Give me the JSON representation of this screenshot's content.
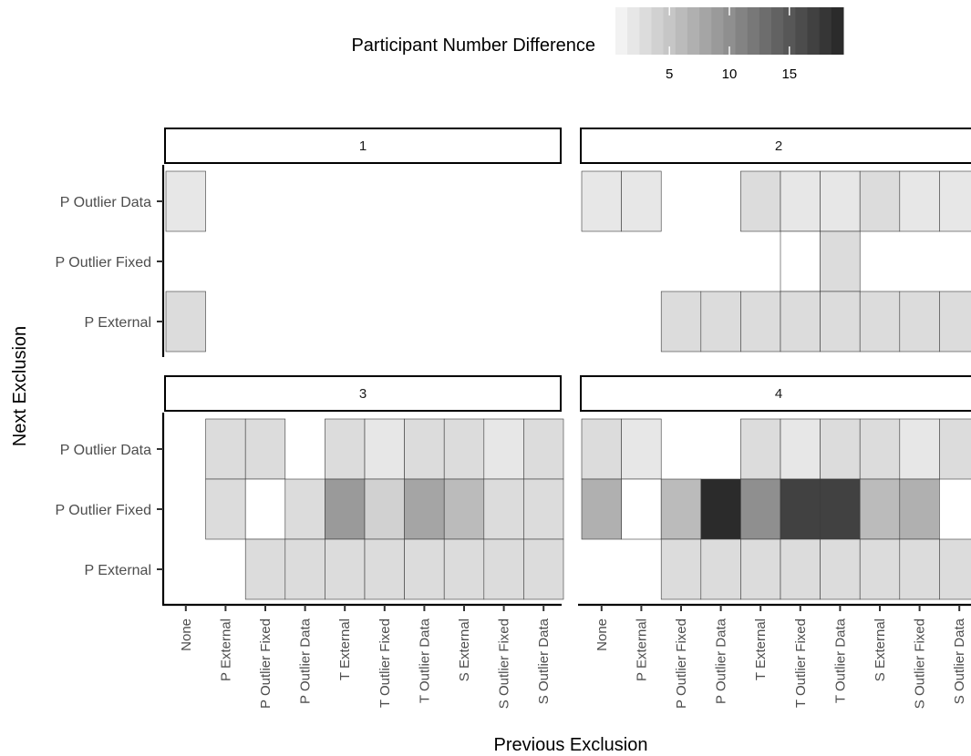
{
  "chart_data": {
    "type": "heatmap",
    "legend": {
      "title": "Participant Number Difference",
      "ticks": [
        5,
        10,
        15
      ],
      "range": [
        1,
        19
      ],
      "position": "top",
      "color_low": "#f2f2f2",
      "color_high": "#2b2b2b"
    },
    "xlabel": "Previous Exclusion",
    "ylabel": "Next Exclusion",
    "x_categories": [
      "None",
      "P External",
      "P Outlier Fixed",
      "P Outlier Data",
      "T External",
      "T Outlier Fixed",
      "T Outlier Data",
      "S External",
      "S Outlier Fixed",
      "S Outlier Data"
    ],
    "y_categories": [
      "P Outlier Data",
      "P Outlier Fixed",
      "P External"
    ],
    "panels": [
      {
        "strip": "1",
        "cells": [
          {
            "x": "None",
            "y": "P Outlier Data",
            "value": 2
          },
          {
            "x": "None",
            "y": "P External",
            "value": 3
          }
        ]
      },
      {
        "strip": "2",
        "cells": [
          {
            "x": "None",
            "y": "P Outlier Data",
            "value": 2
          },
          {
            "x": "P External",
            "y": "P Outlier Data",
            "value": 2
          },
          {
            "x": "T External",
            "y": "P Outlier Data",
            "value": 3
          },
          {
            "x": "T Outlier Fixed",
            "y": "P Outlier Data",
            "value": 2
          },
          {
            "x": "T Outlier Data",
            "y": "P Outlier Data",
            "value": 2
          },
          {
            "x": "S External",
            "y": "P Outlier Data",
            "value": 3
          },
          {
            "x": "S Outlier Fixed",
            "y": "P Outlier Data",
            "value": 2
          },
          {
            "x": "S Outlier Data",
            "y": "P Outlier Data",
            "value": 2
          },
          {
            "x": "T Outlier Fixed",
            "y": "P Outlier Fixed",
            "value": 0
          },
          {
            "x": "T Outlier Data",
            "y": "P Outlier Fixed",
            "value": 3
          },
          {
            "x": "P Outlier Fixed",
            "y": "P External",
            "value": 3
          },
          {
            "x": "P Outlier Data",
            "y": "P External",
            "value": 3
          },
          {
            "x": "T External",
            "y": "P External",
            "value": 3
          },
          {
            "x": "T Outlier Fixed",
            "y": "P External",
            "value": 3
          },
          {
            "x": "T Outlier Data",
            "y": "P External",
            "value": 3
          },
          {
            "x": "S External",
            "y": "P External",
            "value": 3
          },
          {
            "x": "S Outlier Fixed",
            "y": "P External",
            "value": 3
          },
          {
            "x": "S Outlier Data",
            "y": "P External",
            "value": 3
          }
        ]
      },
      {
        "strip": "3",
        "cells": [
          {
            "x": "P External",
            "y": "P Outlier Data",
            "value": 3
          },
          {
            "x": "P Outlier Fixed",
            "y": "P Outlier Data",
            "value": 3
          },
          {
            "x": "T External",
            "y": "P Outlier Data",
            "value": 3
          },
          {
            "x": "T Outlier Fixed",
            "y": "P Outlier Data",
            "value": 2
          },
          {
            "x": "T Outlier Data",
            "y": "P Outlier Data",
            "value": 3
          },
          {
            "x": "S External",
            "y": "P Outlier Data",
            "value": 3
          },
          {
            "x": "S Outlier Fixed",
            "y": "P Outlier Data",
            "value": 2
          },
          {
            "x": "S Outlier Data",
            "y": "P Outlier Data",
            "value": 3
          },
          {
            "x": "P External",
            "y": "P Outlier Fixed",
            "value": 3
          },
          {
            "x": "P Outlier Fixed",
            "y": "P Outlier Fixed",
            "value": 0
          },
          {
            "x": "P Outlier Data",
            "y": "P Outlier Fixed",
            "value": 3
          },
          {
            "x": "T External",
            "y": "P Outlier Fixed",
            "value": 9
          },
          {
            "x": "T Outlier Fixed",
            "y": "P Outlier Fixed",
            "value": 4
          },
          {
            "x": "T Outlier Data",
            "y": "P Outlier Fixed",
            "value": 8
          },
          {
            "x": "S External",
            "y": "P Outlier Fixed",
            "value": 6
          },
          {
            "x": "S Outlier Fixed",
            "y": "P Outlier Fixed",
            "value": 3
          },
          {
            "x": "S Outlier Data",
            "y": "P Outlier Fixed",
            "value": 3
          },
          {
            "x": "P Outlier Fixed",
            "y": "P External",
            "value": 3
          },
          {
            "x": "P Outlier Data",
            "y": "P External",
            "value": 3
          },
          {
            "x": "T External",
            "y": "P External",
            "value": 3
          },
          {
            "x": "T Outlier Fixed",
            "y": "P External",
            "value": 3
          },
          {
            "x": "T Outlier Data",
            "y": "P External",
            "value": 3
          },
          {
            "x": "S External",
            "y": "P External",
            "value": 3
          },
          {
            "x": "S Outlier Fixed",
            "y": "P External",
            "value": 3
          },
          {
            "x": "S Outlier Data",
            "y": "P External",
            "value": 3
          }
        ]
      },
      {
        "strip": "4",
        "cells": [
          {
            "x": "None",
            "y": "P Outlier Data",
            "value": 3
          },
          {
            "x": "P External",
            "y": "P Outlier Data",
            "value": 2
          },
          {
            "x": "T External",
            "y": "P Outlier Data",
            "value": 3
          },
          {
            "x": "T Outlier Fixed",
            "y": "P Outlier Data",
            "value": 2
          },
          {
            "x": "T Outlier Data",
            "y": "P Outlier Data",
            "value": 3
          },
          {
            "x": "S External",
            "y": "P Outlier Data",
            "value": 3
          },
          {
            "x": "S Outlier Fixed",
            "y": "P Outlier Data",
            "value": 2
          },
          {
            "x": "S Outlier Data",
            "y": "P Outlier Data",
            "value": 3
          },
          {
            "x": "None",
            "y": "P Outlier Fixed",
            "value": 7
          },
          {
            "x": "P External",
            "y": "P Outlier Fixed",
            "value": 0
          },
          {
            "x": "P Outlier Fixed",
            "y": "P Outlier Fixed",
            "value": 6
          },
          {
            "x": "P Outlier Data",
            "y": "P Outlier Fixed",
            "value": 19
          },
          {
            "x": "T External",
            "y": "P Outlier Fixed",
            "value": 10
          },
          {
            "x": "T Outlier Fixed",
            "y": "P Outlier Fixed",
            "value": 17
          },
          {
            "x": "T Outlier Data",
            "y": "P Outlier Fixed",
            "value": 17
          },
          {
            "x": "S External",
            "y": "P Outlier Fixed",
            "value": 6
          },
          {
            "x": "S Outlier Fixed",
            "y": "P Outlier Fixed",
            "value": 7
          },
          {
            "x": "P Outlier Fixed",
            "y": "P External",
            "value": 3
          },
          {
            "x": "P Outlier Data",
            "y": "P External",
            "value": 3
          },
          {
            "x": "T External",
            "y": "P External",
            "value": 3
          },
          {
            "x": "T Outlier Fixed",
            "y": "P External",
            "value": 3
          },
          {
            "x": "T Outlier Data",
            "y": "P External",
            "value": 3
          },
          {
            "x": "S External",
            "y": "P External",
            "value": 3
          },
          {
            "x": "S Outlier Fixed",
            "y": "P External",
            "value": 3
          },
          {
            "x": "S Outlier Data",
            "y": "P External",
            "value": 3
          }
        ]
      }
    ]
  }
}
